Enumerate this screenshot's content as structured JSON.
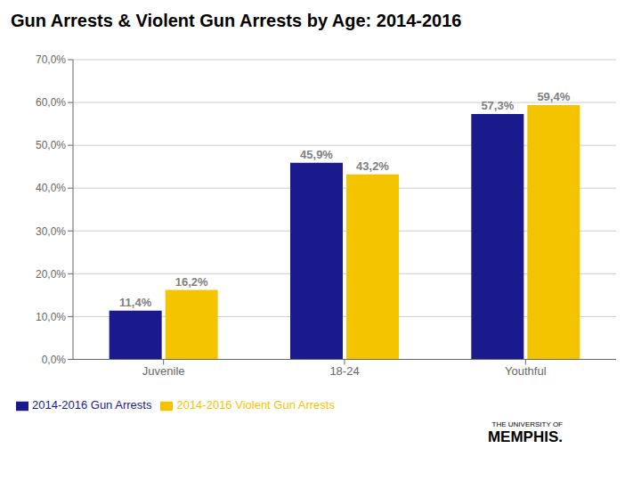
{
  "chart_data": {
    "type": "bar",
    "title": "Gun Arrests & Violent Gun Arrests by Age: 2014-2016",
    "categories": [
      "Juvenile",
      "18-24",
      "Youthful"
    ],
    "series": [
      {
        "name": "2014-2016 Gun Arrests",
        "color": "#1a1a8c",
        "values": [
          11.4,
          45.9,
          57.3
        ],
        "value_labels": [
          "11,4%",
          "45,9%",
          "57,3%"
        ]
      },
      {
        "name": "2014-2016 Violent Gun Arrests",
        "color": "#f5c400",
        "values": [
          16.2,
          43.2,
          59.4
        ],
        "value_labels": [
          "16,2%",
          "43,2%",
          "59,4%"
        ]
      }
    ],
    "ylim": [
      0,
      70
    ],
    "yticks": [
      {
        "value": 0,
        "label": "0,0%"
      },
      {
        "value": 10,
        "label": "10,0%"
      },
      {
        "value": 20,
        "label": "20,0%"
      },
      {
        "value": 30,
        "label": "30,0%"
      },
      {
        "value": 40,
        "label": "40,0%"
      },
      {
        "value": 50,
        "label": "50,0%"
      },
      {
        "value": 60,
        "label": "60,0%"
      },
      {
        "value": 70,
        "label": "70,0%"
      }
    ],
    "grid": true,
    "legend": "bottom",
    "data_labels": true,
    "annotations": [
      "THE UNIVERSITY OF",
      "MEMPHIS."
    ]
  }
}
